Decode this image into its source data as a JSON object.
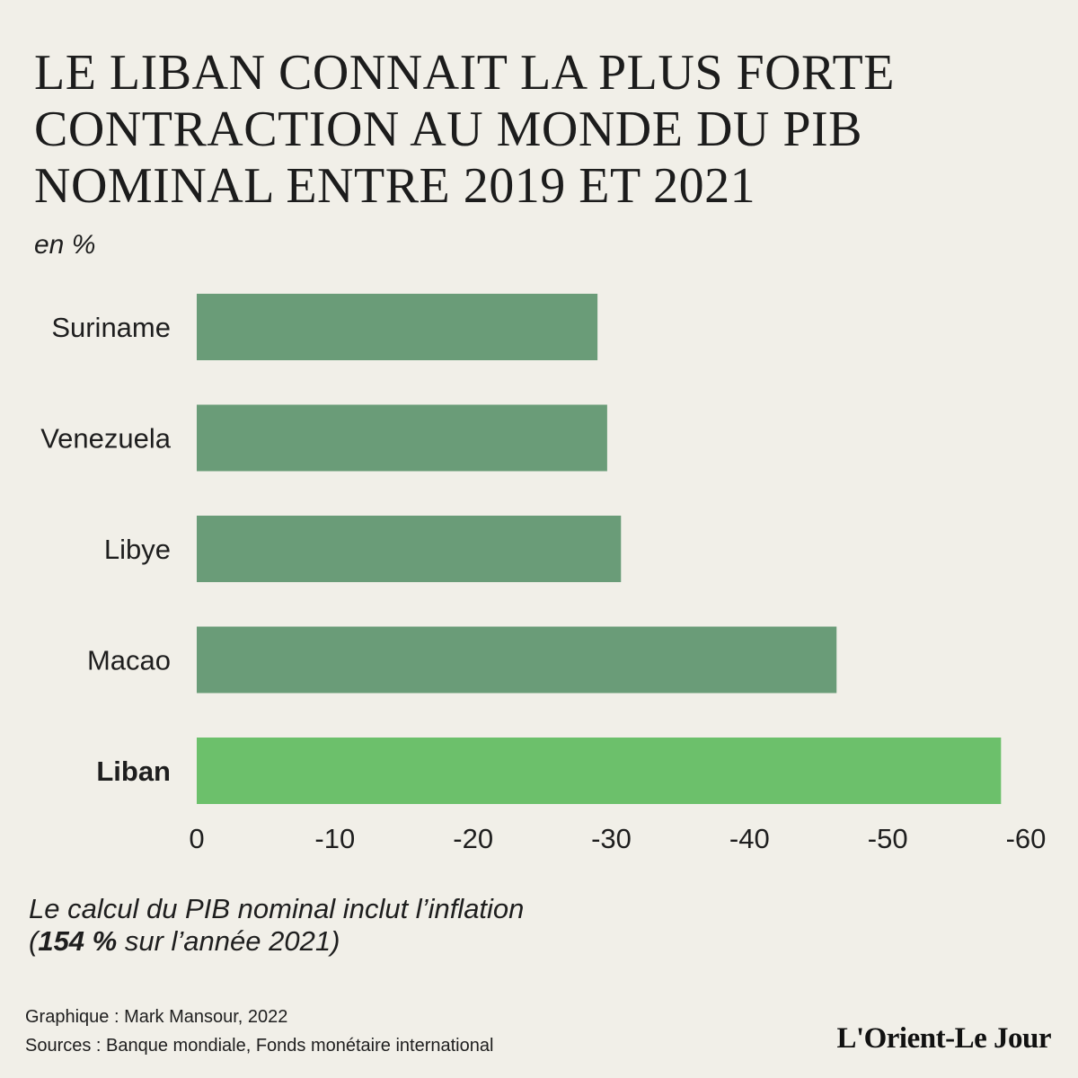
{
  "title_lines": [
    "LE LIBAN CONNAIT LA PLUS FORTE",
    "CONTRACTION AU MONDE DU PIB",
    "NOMINAL ENTRE 2019 ET 2021"
  ],
  "unit_label": "en %",
  "chart_data": {
    "type": "bar",
    "orientation": "horizontal",
    "title": "LE LIBAN CONNAIT LA PLUS FORTE CONTRACTION AU MONDE DU PIB NOMINAL ENTRE 2019 ET 2021",
    "ylabel": "en %",
    "categories": [
      "Suriname",
      "Venezuela",
      "Libye",
      "Macao",
      "Liban"
    ],
    "values": [
      -29,
      -29.7,
      -30.7,
      -46.3,
      -58.2
    ],
    "highlight": "Liban",
    "xlim": [
      0,
      -60
    ],
    "ticks": [
      0,
      -10,
      -20,
      -30,
      -40,
      -50,
      -60
    ],
    "tick_labels": [
      "0",
      "-10",
      "-20",
      "-30",
      "-40",
      "-50",
      "-60"
    ],
    "colors": {
      "bar": "#6a9c78",
      "highlight": "#6cc06b"
    },
    "grid": false
  },
  "note": {
    "line1": "Le calcul du PIB nominal inclut l’inflation",
    "open_paren": "(",
    "bold": "154 %",
    "rest": " sur l’année 2021)"
  },
  "credits": {
    "graphic": "Graphique : Mark Mansour, 2022",
    "sources": "Sources : Banque mondiale, Fonds monétaire international"
  },
  "logo_text": "L'Orient-Le Jour"
}
